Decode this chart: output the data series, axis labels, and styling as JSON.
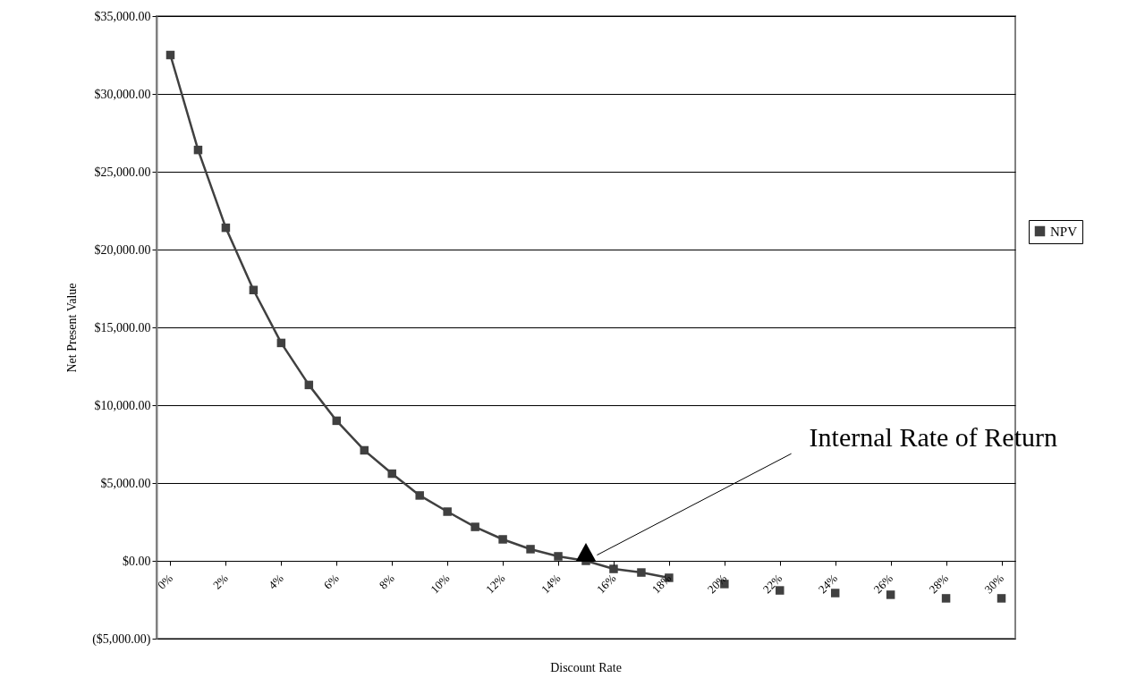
{
  "chart_data": {
    "type": "line",
    "xlabel": "Discount Rate",
    "ylabel": "Net Present Value",
    "categories": [
      "0%",
      null,
      "2%",
      null,
      "4%",
      null,
      "6%",
      null,
      "8%",
      null,
      "10%",
      null,
      "12%",
      null,
      "14%",
      null,
      "16%",
      null,
      "18%",
      null,
      "20%",
      null,
      "22%",
      null,
      "24%",
      null,
      "26%",
      null,
      "28%",
      null,
      "30%"
    ],
    "series": [
      {
        "name": "NPV",
        "color": "#404040",
        "values": [
          32500,
          26400,
          21400,
          17400,
          14000,
          11300,
          9000,
          7100,
          5600,
          4200,
          3160,
          2180,
          1380,
          750,
          290,
          0,
          -520,
          -750,
          -1090,
          null,
          -1490,
          null,
          -1900,
          null,
          -2070,
          null,
          -2180,
          null,
          -2410,
          null,
          -2410
        ]
      }
    ],
    "ylim": [
      -5000,
      35000
    ],
    "yticks": [
      {
        "value": -5000,
        "label": "($5,000.00)"
      },
      {
        "value": 0,
        "label": "$0.00"
      },
      {
        "value": 5000,
        "label": "$5,000.00"
      },
      {
        "value": 10000,
        "label": "$10,000.00"
      },
      {
        "value": 15000,
        "label": "$15,000.00"
      },
      {
        "value": 20000,
        "label": "$20,000.00"
      },
      {
        "value": 25000,
        "label": "$25,000.00"
      },
      {
        "value": 30000,
        "label": "$30,000.00"
      },
      {
        "value": 35000,
        "label": "$35,000.00"
      }
    ],
    "grid": "y",
    "legend": "right",
    "marker": "square",
    "line_style": "solid",
    "annotations": [
      "Internal Rate of Return"
    ]
  }
}
